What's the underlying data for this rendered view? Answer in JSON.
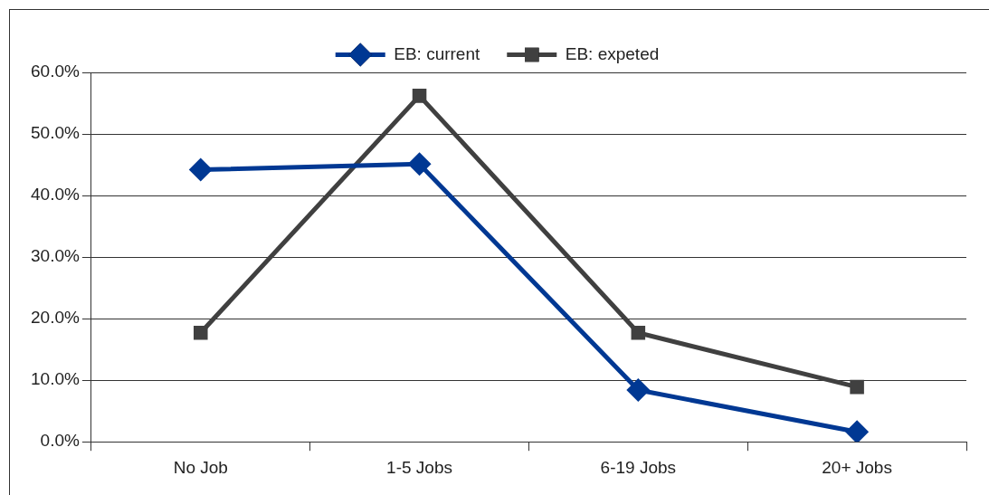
{
  "chart_data": {
    "type": "line",
    "categories": [
      "No Job",
      "1-5 Jobs",
      "6-19 Jobs",
      "20+ Jobs"
    ],
    "series": [
      {
        "name": "EB: current",
        "color": "#003893",
        "marker": "diamond",
        "values": [
          44.2,
          45.1,
          8.4,
          1.6
        ]
      },
      {
        "name": "EB: expeted",
        "color": "#404040",
        "marker": "square",
        "values": [
          17.7,
          56.2,
          17.7,
          8.9
        ]
      }
    ],
    "ylim": [
      0,
      60
    ],
    "yticks": [
      {
        "value": 0,
        "label": "0.0%"
      },
      {
        "value": 10,
        "label": "10.0%"
      },
      {
        "value": 20,
        "label": "20.0%"
      },
      {
        "value": 30,
        "label": "30.0%"
      },
      {
        "value": 40,
        "label": "40.0%"
      },
      {
        "value": 50,
        "label": "50.0%"
      },
      {
        "value": 60,
        "label": "60.0%"
      }
    ],
    "grid": "y",
    "legend": "top",
    "line_style": "solid"
  }
}
